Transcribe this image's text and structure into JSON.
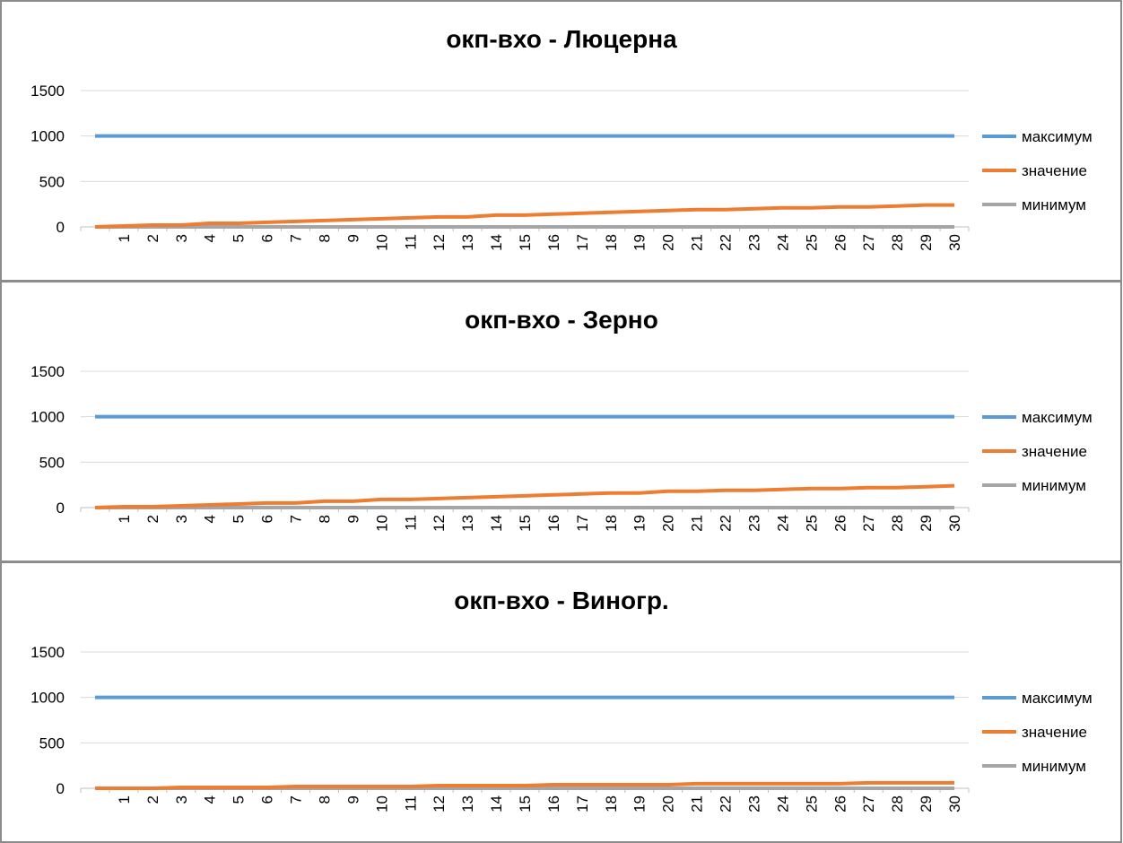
{
  "chart_data": [
    {
      "type": "line",
      "title": "окп-вхо - Люцерна",
      "categories": [
        null,
        "1",
        "2",
        "3",
        "4",
        "5",
        "6",
        "7",
        "8",
        "9",
        "10",
        "11",
        "12",
        "13",
        "14",
        "15",
        "16",
        "17",
        "18",
        "19",
        "20",
        "21",
        "22",
        "23",
        "24",
        "25",
        "26",
        "27",
        "28",
        "29",
        "30"
      ],
      "ylim": [
        0,
        1500
      ],
      "yticks": [
        0,
        500,
        1000,
        1500
      ],
      "grid": true,
      "legend": "right",
      "series": [
        {
          "name": "максимум",
          "color": "#5b9bd5",
          "values": [
            1000,
            1000,
            1000,
            1000,
            1000,
            1000,
            1000,
            1000,
            1000,
            1000,
            1000,
            1000,
            1000,
            1000,
            1000,
            1000,
            1000,
            1000,
            1000,
            1000,
            1000,
            1000,
            1000,
            1000,
            1000,
            1000,
            1000,
            1000,
            1000,
            1000,
            1000
          ]
        },
        {
          "name": "значение",
          "color": "#ed7d31",
          "values": [
            0,
            10,
            20,
            20,
            40,
            40,
            50,
            60,
            70,
            80,
            90,
            100,
            110,
            110,
            130,
            130,
            140,
            150,
            160,
            170,
            180,
            190,
            190,
            200,
            210,
            210,
            220,
            220,
            230,
            240,
            240
          ]
        },
        {
          "name": "минимум",
          "color": "#a5a5a5",
          "values": [
            0,
            0,
            0,
            0,
            0,
            0,
            0,
            0,
            0,
            0,
            0,
            0,
            0,
            0,
            0,
            0,
            0,
            0,
            0,
            0,
            0,
            0,
            0,
            0,
            0,
            0,
            0,
            0,
            0,
            0,
            0
          ]
        }
      ]
    },
    {
      "type": "line",
      "title": "окп-вхо - Зерно",
      "categories": [
        null,
        "1",
        "2",
        "3",
        "4",
        "5",
        "6",
        "7",
        "8",
        "9",
        "10",
        "11",
        "12",
        "13",
        "14",
        "15",
        "16",
        "17",
        "18",
        "19",
        "20",
        "21",
        "22",
        "23",
        "24",
        "25",
        "26",
        "27",
        "28",
        "29",
        "30"
      ],
      "ylim": [
        0,
        1500
      ],
      "yticks": [
        0,
        500,
        1000,
        1500
      ],
      "grid": true,
      "legend": "right",
      "series": [
        {
          "name": "максимум",
          "color": "#5b9bd5",
          "values": [
            1000,
            1000,
            1000,
            1000,
            1000,
            1000,
            1000,
            1000,
            1000,
            1000,
            1000,
            1000,
            1000,
            1000,
            1000,
            1000,
            1000,
            1000,
            1000,
            1000,
            1000,
            1000,
            1000,
            1000,
            1000,
            1000,
            1000,
            1000,
            1000,
            1000,
            1000
          ]
        },
        {
          "name": "значение",
          "color": "#ed7d31",
          "values": [
            0,
            10,
            10,
            20,
            30,
            40,
            50,
            50,
            70,
            70,
            90,
            90,
            100,
            110,
            120,
            130,
            140,
            150,
            160,
            160,
            180,
            180,
            190,
            190,
            200,
            210,
            210,
            220,
            220,
            230,
            240
          ]
        },
        {
          "name": "минимум",
          "color": "#a5a5a5",
          "values": [
            0,
            0,
            0,
            0,
            0,
            0,
            0,
            0,
            0,
            0,
            0,
            0,
            0,
            0,
            0,
            0,
            0,
            0,
            0,
            0,
            0,
            0,
            0,
            0,
            0,
            0,
            0,
            0,
            0,
            0,
            0
          ]
        }
      ]
    },
    {
      "type": "line",
      "title": "окп-вхо - Виногр.",
      "categories": [
        null,
        "1",
        "2",
        "3",
        "4",
        "5",
        "6",
        "7",
        "8",
        "9",
        "10",
        "11",
        "12",
        "13",
        "14",
        "15",
        "16",
        "17",
        "18",
        "19",
        "20",
        "21",
        "22",
        "23",
        "24",
        "25",
        "26",
        "27",
        "28",
        "29",
        "30"
      ],
      "ylim": [
        0,
        1500
      ],
      "yticks": [
        0,
        500,
        1000,
        1500
      ],
      "grid": true,
      "legend": "right",
      "series": [
        {
          "name": "максимум",
          "color": "#5b9bd5",
          "values": [
            1000,
            1000,
            1000,
            1000,
            1000,
            1000,
            1000,
            1000,
            1000,
            1000,
            1000,
            1000,
            1000,
            1000,
            1000,
            1000,
            1000,
            1000,
            1000,
            1000,
            1000,
            1000,
            1000,
            1000,
            1000,
            1000,
            1000,
            1000,
            1000,
            1000,
            1000
          ]
        },
        {
          "name": "значение",
          "color": "#ed7d31",
          "values": [
            0,
            0,
            0,
            10,
            10,
            10,
            10,
            20,
            20,
            20,
            20,
            20,
            30,
            30,
            30,
            30,
            40,
            40,
            40,
            40,
            40,
            50,
            50,
            50,
            50,
            50,
            50,
            60,
            60,
            60,
            60
          ]
        },
        {
          "name": "минимум",
          "color": "#a5a5a5",
          "values": [
            0,
            0,
            0,
            0,
            0,
            0,
            0,
            0,
            0,
            0,
            0,
            0,
            0,
            0,
            0,
            0,
            0,
            0,
            0,
            0,
            0,
            0,
            0,
            0,
            0,
            0,
            0,
            0,
            0,
            0,
            0
          ]
        }
      ]
    }
  ]
}
